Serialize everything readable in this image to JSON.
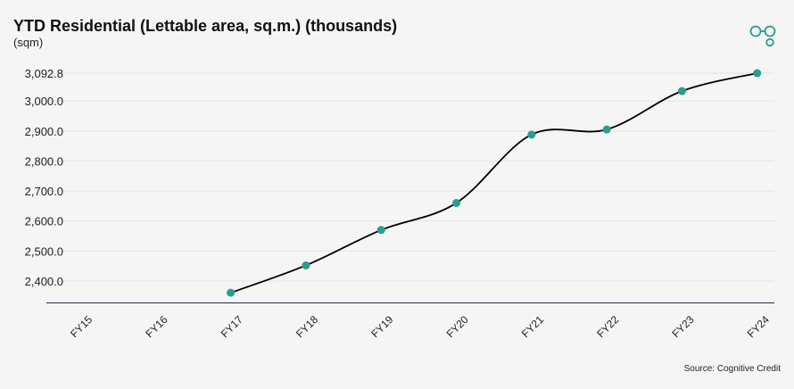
{
  "chart_data": {
    "type": "line",
    "title": "YTD Residential (Lettable area, sq.m.) (thousands)",
    "subtitle": "(sqm)",
    "source": "Source: Cognitive Credit",
    "categories": [
      "FY15",
      "FY16",
      "FY17",
      "FY18",
      "FY19",
      "FY20",
      "FY21",
      "FY22",
      "FY23",
      "FY24"
    ],
    "y_ticks": [
      "3,092.8",
      "3,000.0",
      "2,900.0",
      "2,800.0",
      "2,700.0",
      "2,600.0",
      "2,500.0",
      "2,400.0"
    ],
    "y_tick_values": [
      3092.8,
      3000,
      2900,
      2800,
      2700,
      2600,
      2500,
      2400
    ],
    "ylim": [
      2327,
      3092.8
    ],
    "grid": true,
    "series": [
      {
        "values": [
          null,
          null,
          2361,
          2452,
          2570,
          2660,
          2888,
          2905,
          3033,
          3092.8
        ],
        "color": "#000000",
        "marker_color": "#2a9d8f"
      }
    ]
  },
  "colors": {
    "accent": "#2a9d8f",
    "background": "#f5f5f5"
  },
  "logo_icon": "cognitive-credit-logo-icon"
}
